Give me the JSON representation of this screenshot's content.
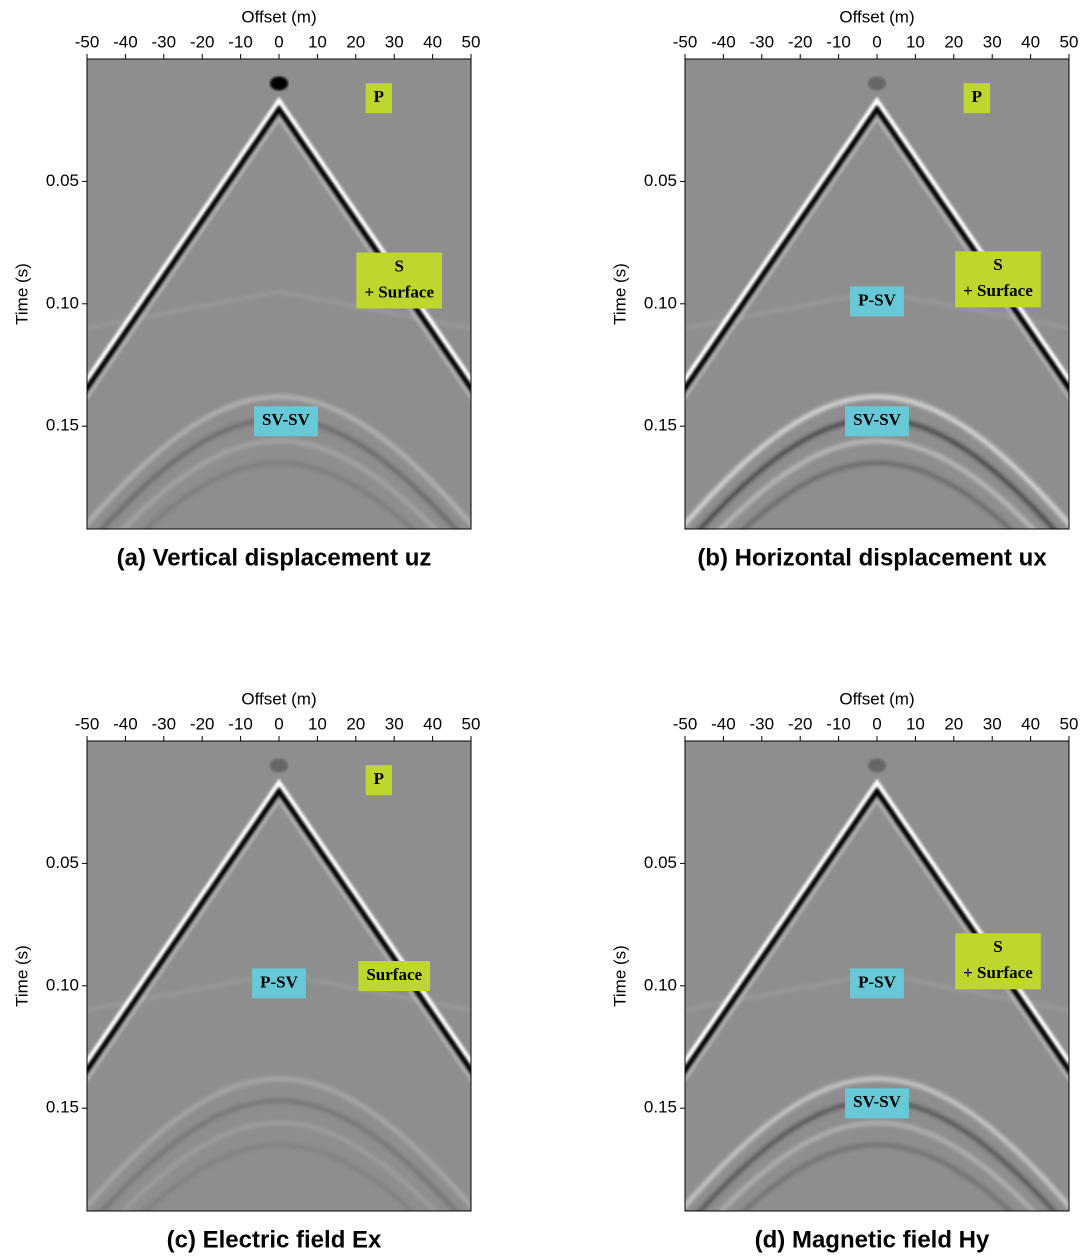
{
  "chart_data": [
    {
      "type": "seismogram",
      "title": "(a) Vertical displacement uz",
      "xlabel": "Offset (m)",
      "ylabel": "Time (s)",
      "xlim": [
        -50,
        50
      ],
      "xticks": [
        -50,
        -40,
        -30,
        -20,
        -10,
        0,
        10,
        20,
        30,
        40,
        50
      ],
      "ylim": [
        0,
        0.192
      ],
      "yticks": [
        0.05,
        {
          "value": 0.1,
          "label": "0.10"
        },
        0.15
      ],
      "annotations": [
        {
          "lines": [
            "P"
          ],
          "color": "#bfd62f"
        },
        {
          "lines": [
            "S",
            "+ Surface"
          ],
          "color": "#bfd62f"
        },
        {
          "lines": [
            "SV-SV"
          ],
          "color": "#67c8d8"
        }
      ]
    },
    {
      "type": "seismogram",
      "title": "(b) Horizontal displacement ux",
      "xlabel": "Offset (m)",
      "ylabel": "Time (s)",
      "xlim": [
        -50,
        50
      ],
      "xticks": [
        -50,
        -40,
        -30,
        -20,
        -10,
        0,
        10,
        20,
        30,
        40,
        50
      ],
      "ylim": [
        0,
        0.192
      ],
      "yticks": [
        0.05,
        {
          "value": 0.1,
          "label": "0.10"
        },
        0.15
      ],
      "annotations": [
        {
          "lines": [
            "P"
          ],
          "color": "#bfd62f"
        },
        {
          "lines": [
            "P-SV"
          ],
          "color": "#67c8d8"
        },
        {
          "lines": [
            "S",
            "+ Surface"
          ],
          "color": "#bfd62f"
        },
        {
          "lines": [
            "SV-SV"
          ],
          "color": "#67c8d8"
        }
      ]
    },
    {
      "type": "seismogram",
      "title": "(c) Electric field Ex",
      "xlabel": "Offset (m)",
      "ylabel": "Time (s)",
      "xlim": [
        -50,
        50
      ],
      "xticks": [
        -50,
        -40,
        -30,
        -20,
        -10,
        0,
        10,
        20,
        30,
        40,
        50
      ],
      "ylim": [
        0,
        0.192
      ],
      "yticks": [
        0.05,
        {
          "value": 0.1,
          "label": "0.10"
        },
        0.15
      ],
      "annotations": [
        {
          "lines": [
            "P"
          ],
          "color": "#bfd62f"
        },
        {
          "lines": [
            "P-SV"
          ],
          "color": "#67c8d8"
        },
        {
          "lines": [
            "Surface"
          ],
          "color": "#bfd62f"
        }
      ]
    },
    {
      "type": "seismogram",
      "title": "(d) Magnetic field Hy",
      "xlabel": "Offset (m)",
      "ylabel": "Time (s)",
      "xlim": [
        -50,
        50
      ],
      "xticks": [
        -50,
        -40,
        -30,
        -20,
        -10,
        0,
        10,
        20,
        30,
        40,
        50
      ],
      "ylim": [
        0,
        0.192
      ],
      "yticks": [
        0.05,
        {
          "value": 0.1,
          "label": "0.10"
        },
        0.15
      ],
      "annotations": [
        {
          "lines": [
            "P-SV"
          ],
          "color": "#67c8d8"
        },
        {
          "lines": [
            "S",
            "+ Surface"
          ],
          "color": "#bfd62f"
        },
        {
          "lines": [
            "SV-SV"
          ],
          "color": "#67c8d8"
        }
      ]
    }
  ]
}
